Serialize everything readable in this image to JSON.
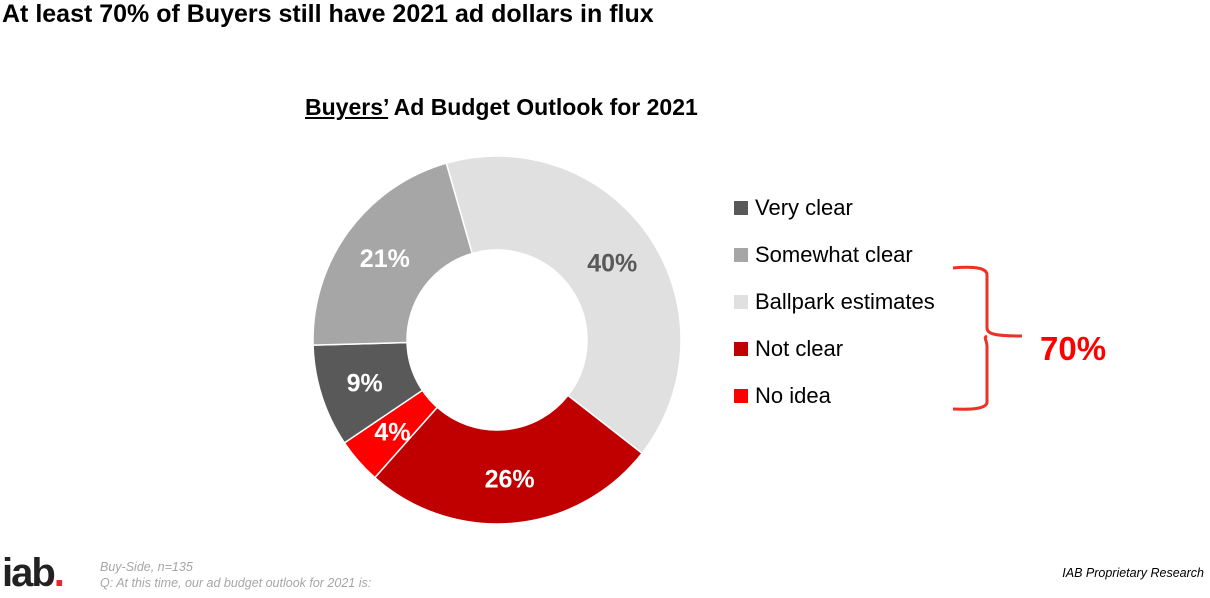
{
  "headline": "At least 70% of Buyers still have 2021 ad dollars in flux",
  "chart_data": {
    "type": "pie",
    "subtype": "donut",
    "title_underlined": "Buyers’",
    "title_rest": " Ad Budget Outlook for 2021",
    "categories": [
      "Very clear",
      "Somewhat clear",
      "Ballpark estimates",
      "Not clear",
      "No idea"
    ],
    "values": [
      9,
      21,
      40,
      26,
      4
    ],
    "labels": [
      "9%",
      "21%",
      "40%",
      "26%",
      "4%"
    ],
    "colors": [
      "#595959",
      "#a6a6a6",
      "#e0e0e0",
      "#c00000",
      "#ff0000"
    ],
    "label_colors": [
      "#ffffff",
      "#ffffff",
      "#595959",
      "#ffffff",
      "#ffffff"
    ],
    "legend_position": "right",
    "bracket_annotation": "70%",
    "bracket_color": "#ee3124"
  },
  "footer": {
    "logo": "iab.",
    "base": "Buy-Side, n=135",
    "question": "Q: At this time, our ad budget outlook for 2021 is:",
    "proprietary": "IAB Proprietary Research"
  }
}
